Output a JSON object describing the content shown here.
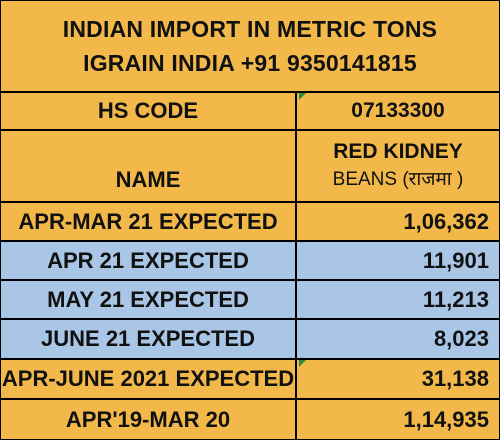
{
  "header": {
    "title": "INDIAN IMPORT IN METRIC TONS",
    "subtitle": "IGRAIN INDIA +91 9350141815"
  },
  "hs_code": {
    "label": "HS CODE",
    "value": "07133300"
  },
  "name_row": {
    "label": "NAME",
    "product_line1": "RED KIDNEY",
    "product_line2": "BEANS (राजमा )"
  },
  "rows": [
    {
      "label": "APR-MAR 21 EXPECTED",
      "value": "1,06,362",
      "highlight": "orange"
    },
    {
      "label": "APR 21 EXPECTED",
      "value": "11,901",
      "highlight": "blue"
    },
    {
      "label": "MAY 21 EXPECTED",
      "value": "11,213",
      "highlight": "blue"
    },
    {
      "label": "JUNE 21 EXPECTED",
      "value": "8,023",
      "highlight": "blue"
    },
    {
      "label": "APR-JUNE 2021 EXPECTED",
      "value": "31,138",
      "highlight": "orange"
    },
    {
      "label": "APR'19-MAR 20",
      "value": "1,14,935",
      "highlight": "orange"
    }
  ],
  "colors": {
    "orange": "#f2b849",
    "blue": "#a9c6e6",
    "grid": "#000000",
    "marker": "#2e8b3e"
  }
}
